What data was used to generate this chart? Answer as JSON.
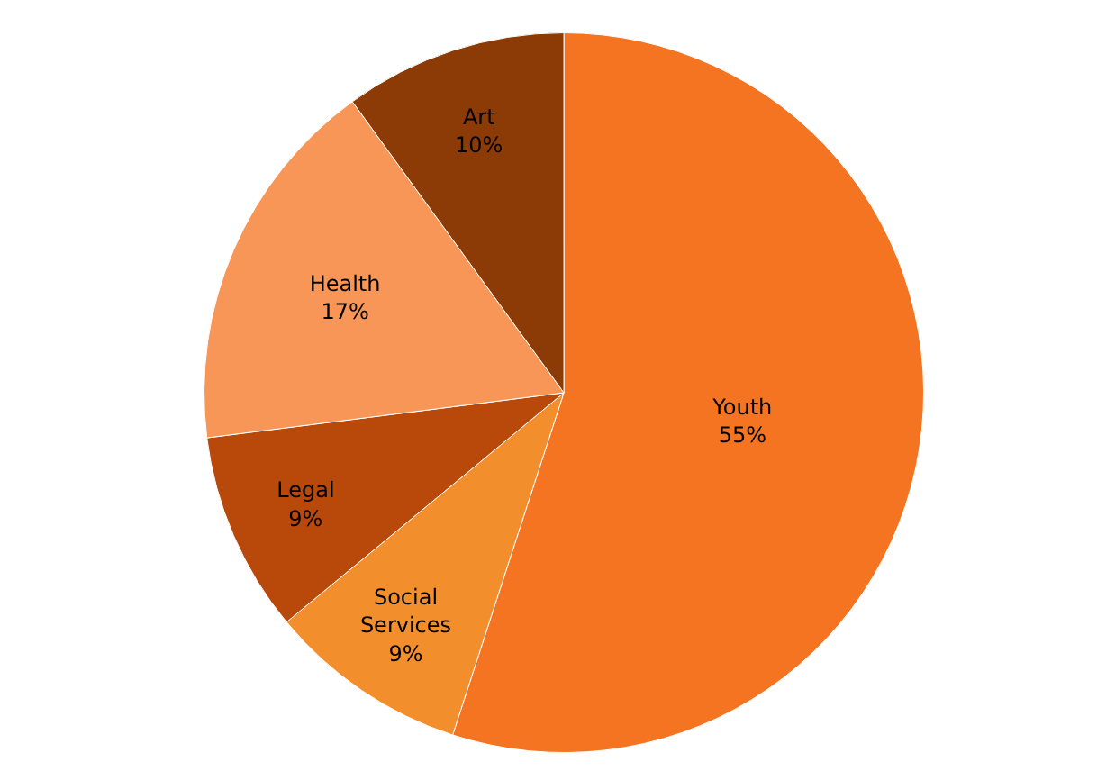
{
  "chart_data": {
    "type": "pie",
    "categories": [
      "Youth",
      "Social Services",
      "Legal",
      "Health",
      "Art"
    ],
    "values": [
      55,
      9,
      9,
      17,
      10
    ],
    "value_labels": [
      "55%",
      "9%",
      "9%",
      "17%",
      "10%"
    ],
    "colors": [
      "#f47421",
      "#f28e2b",
      "#b8490b",
      "#f79656",
      "#8c3a06"
    ],
    "legend": false
  }
}
